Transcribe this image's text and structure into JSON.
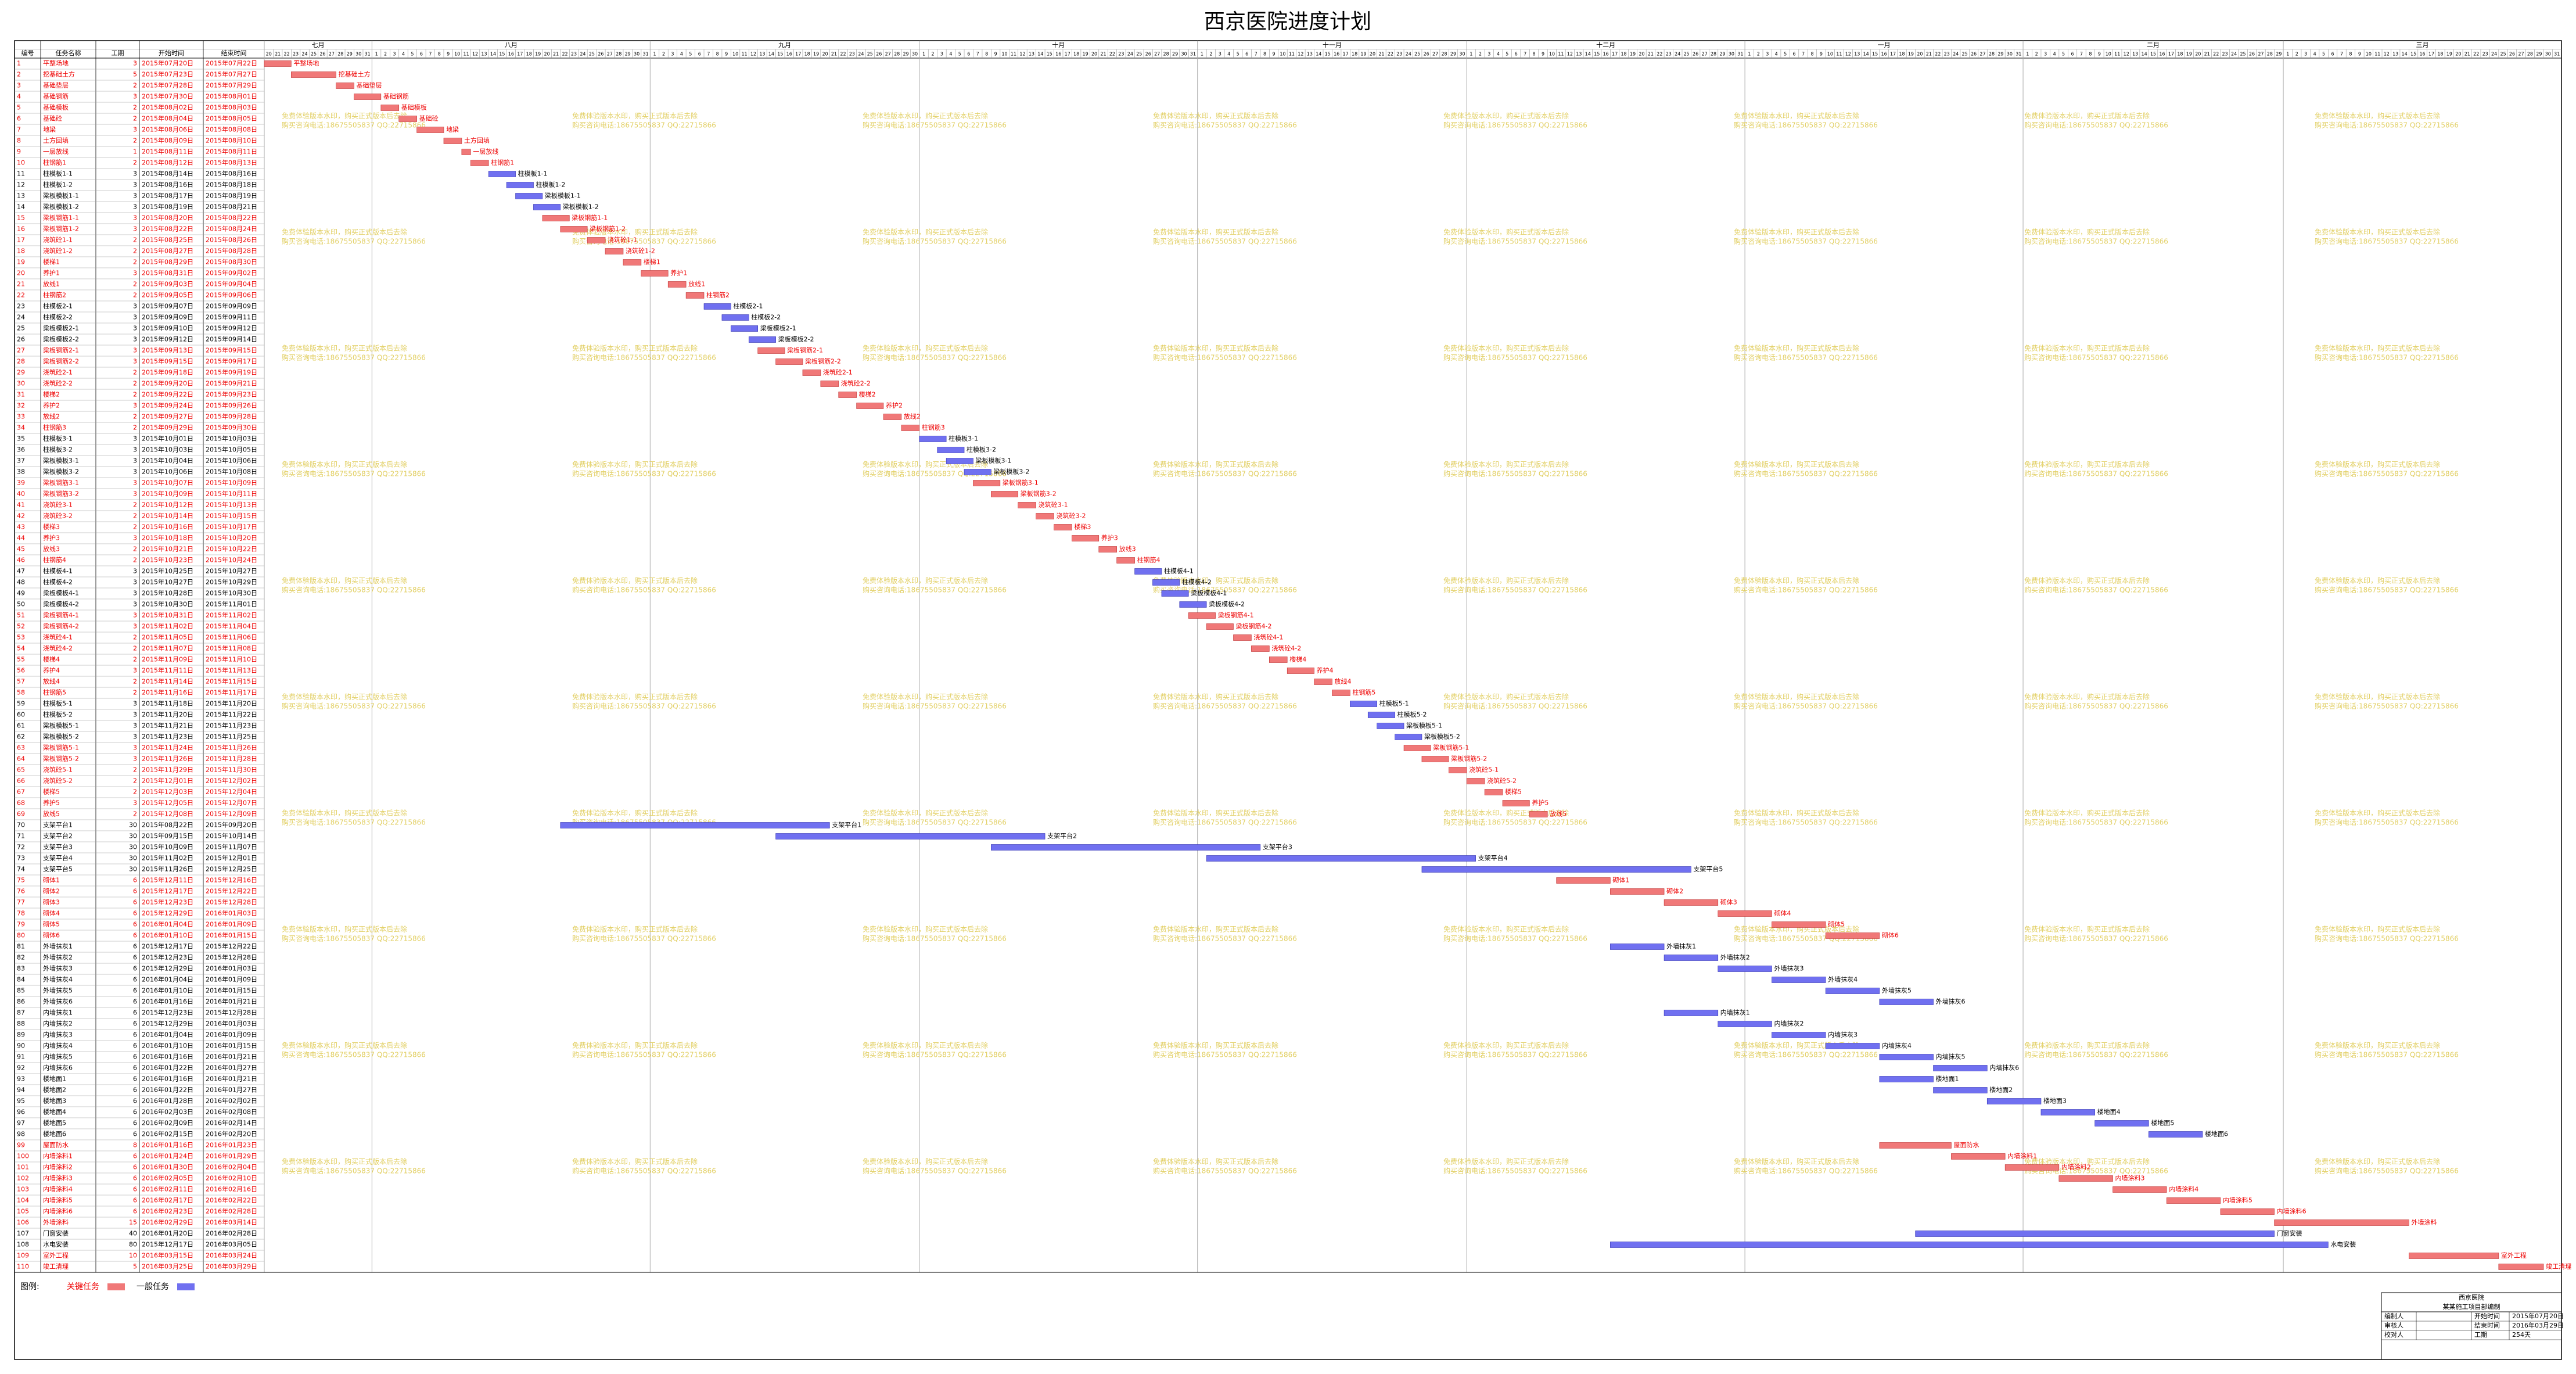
{
  "chart_data": {
    "type": "gantt",
    "title": "西京医院进度计划",
    "columns": [
      "编号",
      "任务名称",
      "工期",
      "开始时间",
      "结束时间"
    ],
    "timeline": [
      {
        "month": "七月",
        "days": [
          20,
          21,
          22,
          23,
          24,
          25,
          26,
          27,
          28,
          29,
          30,
          31
        ]
      },
      {
        "month": "八月",
        "days": [
          1,
          2,
          3,
          4,
          5,
          6,
          7,
          8,
          9,
          10,
          11,
          12,
          13,
          14,
          15,
          16,
          17,
          18,
          19,
          20,
          21,
          22,
          23,
          24,
          25,
          26,
          27,
          28,
          29,
          30,
          31
        ]
      },
      {
        "month": "九月",
        "days": [
          1,
          2,
          3,
          4,
          5,
          6,
          7,
          8,
          9,
          10,
          11,
          12,
          13,
          14,
          15,
          16,
          17,
          18,
          19,
          20,
          21,
          22,
          23,
          24,
          25,
          26,
          27,
          28,
          29,
          30
        ]
      },
      {
        "month": "十月",
        "days": [
          1,
          2,
          3,
          4,
          5,
          6,
          7,
          8,
          9,
          10,
          11,
          12,
          13,
          14,
          15,
          16,
          17,
          18,
          19,
          20,
          21,
          22,
          23,
          24,
          25,
          26,
          27,
          28,
          29,
          30,
          31
        ]
      },
      {
        "month": "十一月",
        "days": [
          1,
          2,
          3,
          4,
          5,
          6,
          7,
          8,
          9,
          10,
          11,
          12,
          13,
          14,
          15,
          16,
          17,
          18,
          19,
          20,
          21,
          22,
          23,
          24,
          25,
          26,
          27,
          28,
          29,
          30
        ]
      },
      {
        "month": "十二月",
        "days": [
          1,
          2,
          3,
          4,
          5,
          6,
          7,
          8,
          9,
          10,
          11,
          12,
          13,
          14,
          15,
          16,
          17,
          18,
          19,
          20,
          21,
          22,
          23,
          24,
          25,
          26,
          27,
          28,
          29,
          30,
          31
        ]
      },
      {
        "month": "一月",
        "days": [
          1,
          2,
          3,
          4,
          5,
          6,
          7,
          8,
          9,
          10,
          11,
          12,
          13,
          14,
          15,
          16,
          17,
          18,
          19,
          20,
          21,
          22,
          23,
          24,
          25,
          26,
          27,
          28,
          29,
          30,
          31
        ]
      },
      {
        "month": "二月",
        "days": [
          1,
          2,
          3,
          4,
          5,
          6,
          7,
          8,
          9,
          10,
          11,
          12,
          13,
          14,
          15,
          16,
          17,
          18,
          19,
          20,
          21,
          22,
          23,
          24,
          25,
          26,
          27,
          28,
          29
        ]
      },
      {
        "month": "三月",
        "days": [
          1,
          2,
          3,
          4,
          5,
          6,
          7,
          8,
          9,
          10,
          11,
          12,
          13,
          14,
          15,
          16,
          17,
          18,
          19,
          20,
          21,
          22,
          23,
          24,
          25,
          26,
          27,
          28,
          29,
          30,
          31
        ]
      }
    ],
    "critical_color": "#f07878",
    "normal_color": "#7070f0",
    "tasks": [
      [
        1,
        "平整场地",
        3,
        "2015年07月20日",
        "2015年07月22日",
        true
      ],
      [
        2,
        "挖基础土方",
        5,
        "2015年07月23日",
        "2015年07月27日",
        true
      ],
      [
        3,
        "基础垫层",
        2,
        "2015年07月28日",
        "2015年07月29日",
        true
      ],
      [
        4,
        "基础钢筋",
        3,
        "2015年07月30日",
        "2015年08月01日",
        true
      ],
      [
        5,
        "基础模板",
        2,
        "2015年08月02日",
        "2015年08月03日",
        true
      ],
      [
        6,
        "基础砼",
        2,
        "2015年08月04日",
        "2015年08月05日",
        true
      ],
      [
        7,
        "地梁",
        3,
        "2015年08月06日",
        "2015年08月08日",
        true
      ],
      [
        8,
        "土方回填",
        2,
        "2015年08月09日",
        "2015年08月10日",
        true
      ],
      [
        9,
        "一层放线",
        1,
        "2015年08月11日",
        "2015年08月11日",
        true
      ],
      [
        10,
        "柱钢筋1",
        2,
        "2015年08月12日",
        "2015年08月13日",
        true
      ],
      [
        11,
        "柱模板1-1",
        3,
        "2015年08月14日",
        "2015年08月16日",
        false
      ],
      [
        12,
        "柱模板1-2",
        3,
        "2015年08月16日",
        "2015年08月18日",
        false
      ],
      [
        13,
        "梁板模板1-1",
        3,
        "2015年08月17日",
        "2015年08月19日",
        false
      ],
      [
        14,
        "梁板模板1-2",
        3,
        "2015年08月19日",
        "2015年08月21日",
        false
      ],
      [
        15,
        "梁板钢筋1-1",
        3,
        "2015年08月20日",
        "2015年08月22日",
        true
      ],
      [
        16,
        "梁板钢筋1-2",
        3,
        "2015年08月22日",
        "2015年08月24日",
        true
      ],
      [
        17,
        "浇筑砼1-1",
        2,
        "2015年08月25日",
        "2015年08月26日",
        true
      ],
      [
        18,
        "浇筑砼1-2",
        2,
        "2015年08月27日",
        "2015年08月28日",
        true
      ],
      [
        19,
        "楼梯1",
        2,
        "2015年08月29日",
        "2015年08月30日",
        true
      ],
      [
        20,
        "养护1",
        3,
        "2015年08月31日",
        "2015年09月02日",
        true
      ],
      [
        21,
        "放线1",
        2,
        "2015年09月03日",
        "2015年09月04日",
        true
      ],
      [
        22,
        "柱钢筋2",
        2,
        "2015年09月05日",
        "2015年09月06日",
        true
      ],
      [
        23,
        "柱模板2-1",
        3,
        "2015年09月07日",
        "2015年09月09日",
        false
      ],
      [
        24,
        "柱模板2-2",
        3,
        "2015年09月09日",
        "2015年09月11日",
        false
      ],
      [
        25,
        "梁板模板2-1",
        3,
        "2015年09月10日",
        "2015年09月12日",
        false
      ],
      [
        26,
        "梁板模板2-2",
        3,
        "2015年09月12日",
        "2015年09月14日",
        false
      ],
      [
        27,
        "梁板钢筋2-1",
        3,
        "2015年09月13日",
        "2015年09月15日",
        true
      ],
      [
        28,
        "梁板钢筋2-2",
        3,
        "2015年09月15日",
        "2015年09月17日",
        true
      ],
      [
        29,
        "浇筑砼2-1",
        2,
        "2015年09月18日",
        "2015年09月19日",
        true
      ],
      [
        30,
        "浇筑砼2-2",
        2,
        "2015年09月20日",
        "2015年09月21日",
        true
      ],
      [
        31,
        "楼梯2",
        2,
        "2015年09月22日",
        "2015年09月23日",
        true
      ],
      [
        32,
        "养护2",
        3,
        "2015年09月24日",
        "2015年09月26日",
        true
      ],
      [
        33,
        "放线2",
        2,
        "2015年09月27日",
        "2015年09月28日",
        true
      ],
      [
        34,
        "柱钢筋3",
        2,
        "2015年09月29日",
        "2015年09月30日",
        true
      ],
      [
        35,
        "柱模板3-1",
        3,
        "2015年10月01日",
        "2015年10月03日",
        false
      ],
      [
        36,
        "柱模板3-2",
        3,
        "2015年10月03日",
        "2015年10月05日",
        false
      ],
      [
        37,
        "梁板模板3-1",
        3,
        "2015年10月04日",
        "2015年10月06日",
        false
      ],
      [
        38,
        "梁板模板3-2",
        3,
        "2015年10月06日",
        "2015年10月08日",
        false
      ],
      [
        39,
        "梁板钢筋3-1",
        3,
        "2015年10月07日",
        "2015年10月09日",
        true
      ],
      [
        40,
        "梁板钢筋3-2",
        3,
        "2015年10月09日",
        "2015年10月11日",
        true
      ],
      [
        41,
        "浇筑砼3-1",
        2,
        "2015年10月12日",
        "2015年10月13日",
        true
      ],
      [
        42,
        "浇筑砼3-2",
        2,
        "2015年10月14日",
        "2015年10月15日",
        true
      ],
      [
        43,
        "楼梯3",
        2,
        "2015年10月16日",
        "2015年10月17日",
        true
      ],
      [
        44,
        "养护3",
        3,
        "2015年10月18日",
        "2015年10月20日",
        true
      ],
      [
        45,
        "放线3",
        2,
        "2015年10月21日",
        "2015年10月22日",
        true
      ],
      [
        46,
        "柱钢筋4",
        2,
        "2015年10月23日",
        "2015年10月24日",
        true
      ],
      [
        47,
        "柱模板4-1",
        3,
        "2015年10月25日",
        "2015年10月27日",
        false
      ],
      [
        48,
        "柱模板4-2",
        3,
        "2015年10月27日",
        "2015年10月29日",
        false
      ],
      [
        49,
        "梁板模板4-1",
        3,
        "2015年10月28日",
        "2015年10月30日",
        false
      ],
      [
        50,
        "梁板模板4-2",
        3,
        "2015年10月30日",
        "2015年11月01日",
        false
      ],
      [
        51,
        "梁板钢筋4-1",
        3,
        "2015年10月31日",
        "2015年11月02日",
        true
      ],
      [
        52,
        "梁板钢筋4-2",
        3,
        "2015年11月02日",
        "2015年11月04日",
        true
      ],
      [
        53,
        "浇筑砼4-1",
        2,
        "2015年11月05日",
        "2015年11月06日",
        true
      ],
      [
        54,
        "浇筑砼4-2",
        2,
        "2015年11月07日",
        "2015年11月08日",
        true
      ],
      [
        55,
        "楼梯4",
        2,
        "2015年11月09日",
        "2015年11月10日",
        true
      ],
      [
        56,
        "养护4",
        3,
        "2015年11月11日",
        "2015年11月13日",
        true
      ],
      [
        57,
        "放线4",
        2,
        "2015年11月14日",
        "2015年11月15日",
        true
      ],
      [
        58,
        "柱钢筋5",
        2,
        "2015年11月16日",
        "2015年11月17日",
        true
      ],
      [
        59,
        "柱模板5-1",
        3,
        "2015年11月18日",
        "2015年11月20日",
        false
      ],
      [
        60,
        "柱模板5-2",
        3,
        "2015年11月20日",
        "2015年11月22日",
        false
      ],
      [
        61,
        "梁板模板5-1",
        3,
        "2015年11月21日",
        "2015年11月23日",
        false
      ],
      [
        62,
        "梁板模板5-2",
        3,
        "2015年11月23日",
        "2015年11月25日",
        false
      ],
      [
        63,
        "梁板钢筋5-1",
        3,
        "2015年11月24日",
        "2015年11月26日",
        true
      ],
      [
        64,
        "梁板钢筋5-2",
        3,
        "2015年11月26日",
        "2015年11月28日",
        true
      ],
      [
        65,
        "浇筑砼5-1",
        2,
        "2015年11月29日",
        "2015年11月30日",
        true
      ],
      [
        66,
        "浇筑砼5-2",
        2,
        "2015年12月01日",
        "2015年12月02日",
        true
      ],
      [
        67,
        "楼梯5",
        2,
        "2015年12月03日",
        "2015年12月04日",
        true
      ],
      [
        68,
        "养护5",
        3,
        "2015年12月05日",
        "2015年12月07日",
        true
      ],
      [
        69,
        "放线5",
        2,
        "2015年12月08日",
        "2015年12月09日",
        true
      ],
      [
        70,
        "支架平台1",
        30,
        "2015年08月22日",
        "2015年09月20日",
        false
      ],
      [
        71,
        "支架平台2",
        30,
        "2015年09月15日",
        "2015年10月14日",
        false
      ],
      [
        72,
        "支架平台3",
        30,
        "2015年10月09日",
        "2015年11月07日",
        false
      ],
      [
        73,
        "支架平台4",
        30,
        "2015年11月02日",
        "2015年12月01日",
        false
      ],
      [
        74,
        "支架平台5",
        30,
        "2015年11月26日",
        "2015年12月25日",
        false
      ],
      [
        75,
        "砌体1",
        6,
        "2015年12月11日",
        "2015年12月16日",
        true
      ],
      [
        76,
        "砌体2",
        6,
        "2015年12月17日",
        "2015年12月22日",
        true
      ],
      [
        77,
        "砌体3",
        6,
        "2015年12月23日",
        "2015年12月28日",
        true
      ],
      [
        78,
        "砌体4",
        6,
        "2015年12月29日",
        "2016年01月03日",
        true
      ],
      [
        79,
        "砌体5",
        6,
        "2016年01月04日",
        "2016年01月09日",
        true
      ],
      [
        80,
        "砌体6",
        6,
        "2016年01月10日",
        "2016年01月15日",
        true
      ],
      [
        81,
        "外墙抹灰1",
        6,
        "2015年12月17日",
        "2015年12月22日",
        false
      ],
      [
        82,
        "外墙抹灰2",
        6,
        "2015年12月23日",
        "2015年12月28日",
        false
      ],
      [
        83,
        "外墙抹灰3",
        6,
        "2015年12月29日",
        "2016年01月03日",
        false
      ],
      [
        84,
        "外墙抹灰4",
        6,
        "2016年01月04日",
        "2016年01月09日",
        false
      ],
      [
        85,
        "外墙抹灰5",
        6,
        "2016年01月10日",
        "2016年01月15日",
        false
      ],
      [
        86,
        "外墙抹灰6",
        6,
        "2016年01月16日",
        "2016年01月21日",
        false
      ],
      [
        87,
        "内墙抹灰1",
        6,
        "2015年12月23日",
        "2015年12月28日",
        false
      ],
      [
        88,
        "内墙抹灰2",
        6,
        "2015年12月29日",
        "2016年01月03日",
        false
      ],
      [
        89,
        "内墙抹灰3",
        6,
        "2016年01月04日",
        "2016年01月09日",
        false
      ],
      [
        90,
        "内墙抹灰4",
        6,
        "2016年01月10日",
        "2016年01月15日",
        false
      ],
      [
        91,
        "内墙抹灰5",
        6,
        "2016年01月16日",
        "2016年01月21日",
        false
      ],
      [
        92,
        "内墙抹灰6",
        6,
        "2016年01月22日",
        "2016年01月27日",
        false
      ],
      [
        93,
        "楼地面1",
        6,
        "2016年01月16日",
        "2016年01月21日",
        false
      ],
      [
        94,
        "楼地面2",
        6,
        "2016年01月22日",
        "2016年01月27日",
        false
      ],
      [
        95,
        "楼地面3",
        6,
        "2016年01月28日",
        "2016年02月02日",
        false
      ],
      [
        96,
        "楼地面4",
        6,
        "2016年02月03日",
        "2016年02月08日",
        false
      ],
      [
        97,
        "楼地面5",
        6,
        "2016年02月09日",
        "2016年02月14日",
        false
      ],
      [
        98,
        "楼地面6",
        6,
        "2016年02月15日",
        "2016年02月20日",
        false
      ],
      [
        99,
        "屋面防水",
        8,
        "2016年01月16日",
        "2016年01月23日",
        true
      ],
      [
        100,
        "内墙涂料1",
        6,
        "2016年01月24日",
        "2016年01月29日",
        true
      ],
      [
        101,
        "内墙涂料2",
        6,
        "2016年01月30日",
        "2016年02月04日",
        true
      ],
      [
        102,
        "内墙涂料3",
        6,
        "2016年02月05日",
        "2016年02月10日",
        true
      ],
      [
        103,
        "内墙涂料4",
        6,
        "2016年02月11日",
        "2016年02月16日",
        true
      ],
      [
        104,
        "内墙涂料5",
        6,
        "2016年02月17日",
        "2016年02月22日",
        true
      ],
      [
        105,
        "内墙涂料6",
        6,
        "2016年02月23日",
        "2016年02月28日",
        true
      ],
      [
        106,
        "外墙涂料",
        15,
        "2016年02月29日",
        "2016年03月14日",
        true
      ],
      [
        107,
        "门窗安装",
        40,
        "2016年01月20日",
        "2016年02月28日",
        false
      ],
      [
        108,
        "水电安装",
        80,
        "2015年12月17日",
        "2016年03月05日",
        false
      ],
      [
        109,
        "室外工程",
        10,
        "2016年03月15日",
        "2016年03月24日",
        true
      ],
      [
        110,
        "竣工清理",
        5,
        "2016年03月25日",
        "2016年03月29日",
        true
      ]
    ],
    "legend": {
      "title": "图例:",
      "critical": "关键任务",
      "normal": "一般任务"
    },
    "watermark": [
      "免费体验版本水印，购买正式版本后去除",
      "购买咨询电话:18675505837 QQ:22715866"
    ],
    "info": {
      "project": "西京医院",
      "company": "某某施工项目部编制",
      "people": [
        "编制人",
        "审核人",
        "校对人"
      ],
      "fields": [
        {
          "label": "开始时间",
          "value": "2015年07月20日"
        },
        {
          "label": "结束时间",
          "value": "2016年03月29日"
        },
        {
          "label": "工期",
          "value": "254天"
        }
      ]
    }
  }
}
